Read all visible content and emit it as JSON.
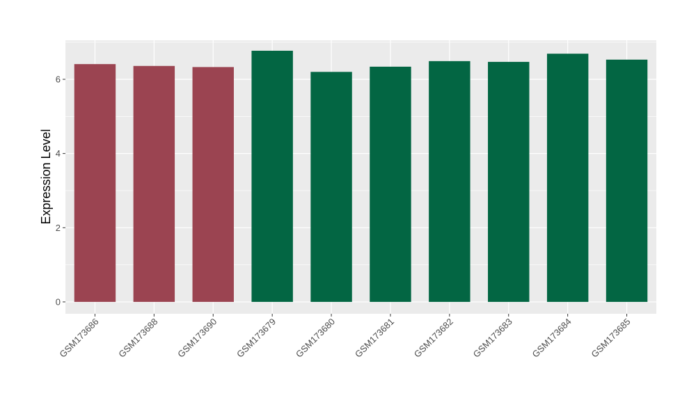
{
  "chart_data": {
    "type": "bar",
    "title": "",
    "xlabel": "",
    "ylabel": "Expression Level",
    "ylim": [
      -0.32,
      7.05
    ],
    "yticks": [
      0,
      2,
      4,
      6
    ],
    "grid": true,
    "legend": "none",
    "categories": [
      "GSM173686",
      "GSM173688",
      "GSM173690",
      "GSM173679",
      "GSM173680",
      "GSM173681",
      "GSM173682",
      "GSM173683",
      "GSM173684",
      "GSM173685"
    ],
    "values": [
      6.41,
      6.36,
      6.33,
      6.77,
      6.2,
      6.34,
      6.49,
      6.47,
      6.69,
      6.53
    ],
    "bar_colors": [
      "#9b4451",
      "#9b4451",
      "#9b4451",
      "#036643",
      "#036643",
      "#036643",
      "#036643",
      "#036643",
      "#036643",
      "#036643"
    ],
    "panel_background": "#ebebeb",
    "grid_color": "#ffffff"
  }
}
